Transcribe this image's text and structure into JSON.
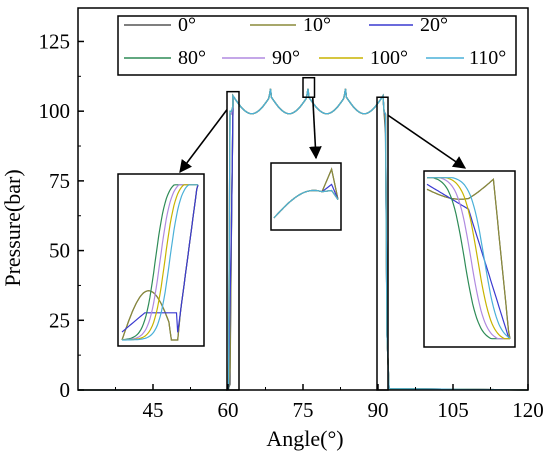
{
  "chart_data": {
    "type": "line",
    "xlabel": "Angle(°)",
    "ylabel": "Pressure(bar)",
    "xlim": [
      30,
      120
    ],
    "ylim": [
      0,
      137
    ],
    "xticks": [
      "45",
      "60",
      "75",
      "90",
      "105",
      "120"
    ],
    "xtick_values": [
      45,
      60,
      75,
      90,
      105,
      120
    ],
    "yticks": [
      "0",
      "25",
      "50",
      "75",
      "100",
      "125"
    ],
    "ytick_values": [
      0,
      25,
      50,
      75,
      100,
      125
    ],
    "legend_position": "top",
    "series": [
      {
        "name": "0°",
        "color": "#555555"
      },
      {
        "name": "10°",
        "color": "#8a8a3a"
      },
      {
        "name": "20°",
        "color": "#3a3ad0"
      },
      {
        "name": "80°",
        "color": "#2e8b57"
      },
      {
        "name": "90°",
        "color": "#b08ae0"
      },
      {
        "name": "100°",
        "color": "#c8b400"
      },
      {
        "name": "110°",
        "color": "#4ab0d8"
      }
    ],
    "plateau": {
      "x_start": 61,
      "x_end": 91,
      "base": 99.5,
      "period": 7.5,
      "peak_x": [
        68.5,
        76,
        83.5
      ],
      "peak_values": [
        108,
        108,
        108
      ]
    },
    "dips": [
      {
        "x": 61,
        "values": [
          2,
          8,
          30,
          99,
          99,
          100,
          100
        ]
      },
      {
        "x": 91,
        "values": [
          92,
          96,
          98,
          99,
          99,
          99,
          99
        ]
      }
    ],
    "inset_marker_boxes": [
      "opening-transition",
      "plateau-peak",
      "closing-transition"
    ]
  }
}
